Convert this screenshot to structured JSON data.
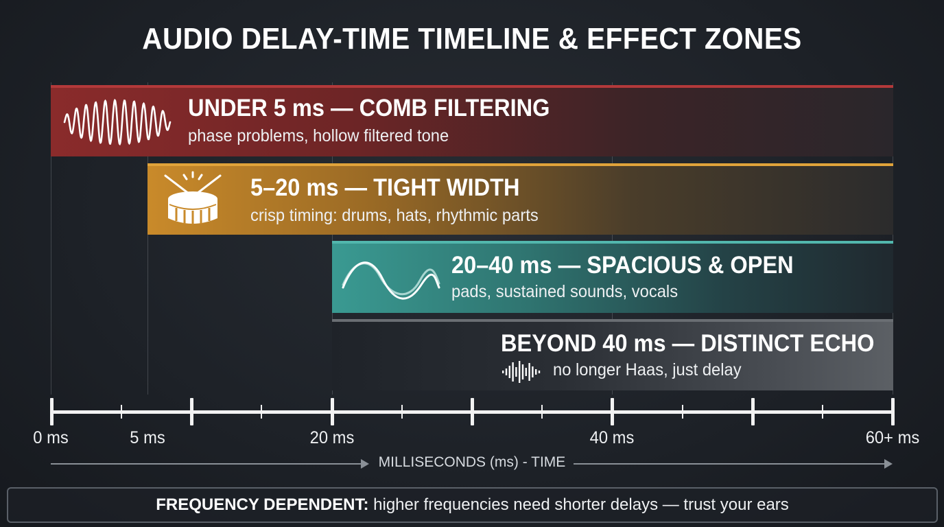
{
  "title": "AUDIO DELAY-TIME TIMELINE & EFFECT ZONES",
  "zones": [
    {
      "heading": "UNDER 5 ms — COMB FILTERING",
      "description": "phase problems, hollow filtered tone",
      "icon": "sine-wave-icon",
      "color": "#8a2b2b"
    },
    {
      "heading": "5–20 ms — TIGHT WIDTH",
      "description": "crisp timing: drums, hats, rhythmic parts",
      "icon": "snare-drum-icon",
      "color": "#c98a2a"
    },
    {
      "heading": "20–40 ms — SPACIOUS & OPEN",
      "description": "pads, sustained sounds, vocals",
      "icon": "double-wave-icon",
      "color": "#3a9a92"
    },
    {
      "heading": "BEYOND 40 ms — DISTINCT ECHO",
      "description": "no longer Haas, just delay",
      "icon": "audio-waveform-icon",
      "color": "#5c6065"
    }
  ],
  "axis": {
    "labels": [
      "0 ms",
      "5 ms",
      "20 ms",
      "40 ms",
      "60+ ms"
    ],
    "title": "MILLISECONDS (ms) - TIME"
  },
  "footer": {
    "bold": "FREQUENCY DEPENDENT:",
    "text": "higher frequencies need shorter delays — trust your ears"
  }
}
